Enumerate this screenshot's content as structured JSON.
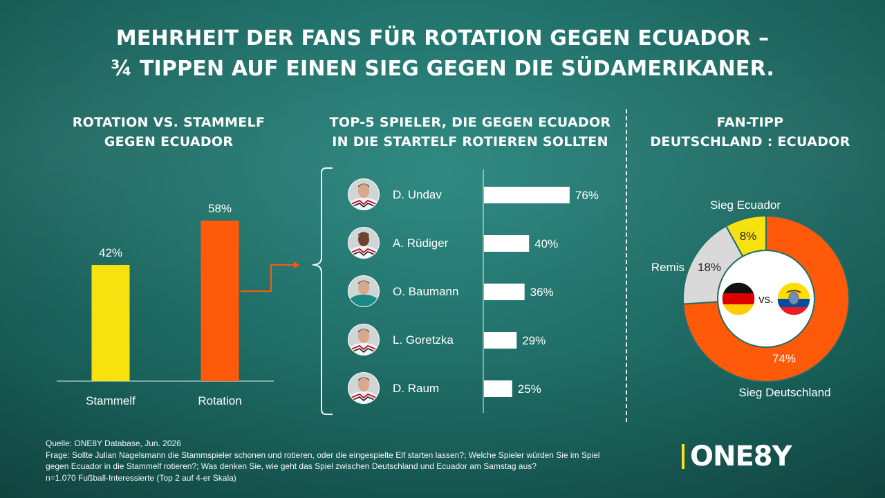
{
  "title": {
    "line1": "MEHRHEIT DER FANS FÜR ROTATION GEGEN ECUADOR –",
    "line2": "¾ TIPPEN AUF EINEN SIEG GEGEN DIE SÜDAMERIKANER."
  },
  "colors": {
    "yellow": "#f7e20f",
    "orange": "#ff5a0a",
    "gray": "#d9d9d9",
    "background": "#1f6e67",
    "white": "#ffffff"
  },
  "chart_data": [
    {
      "type": "bar",
      "title_line1": "ROTATION VS. STAMMELF",
      "title_line2": "GEGEN ECUADOR",
      "categories": [
        "Stammelf",
        "Rotation"
      ],
      "values": [
        42,
        58
      ],
      "value_labels": [
        "42%",
        "58%"
      ],
      "colors": [
        "#f7e20f",
        "#ff5a0a"
      ],
      "ylim": [
        0,
        100
      ]
    },
    {
      "type": "bar",
      "orientation": "horizontal",
      "title_line1": "TOP-5 SPIELER, DIE GEGEN ECUADOR",
      "title_line2": "IN DIE STARTELF ROTIEREN SOLLTEN",
      "categories": [
        "D. Undav",
        "A. Rüdiger",
        "O. Baumann",
        "L. Goretzka",
        "D. Raum"
      ],
      "values": [
        76,
        40,
        36,
        29,
        25
      ],
      "value_labels": [
        "76%",
        "40%",
        "36%",
        "29%",
        "25%"
      ],
      "avatar_icons": [
        "player-avatar-icon",
        "player-avatar-icon",
        "goalkeeper-avatar-icon",
        "player-avatar-icon",
        "player-avatar-icon"
      ],
      "xlim": [
        0,
        100
      ]
    },
    {
      "type": "pie",
      "donut": true,
      "title_line1": "FAN-TIPP",
      "title_line2": "DEUTSCHLAND : ECUADOR",
      "slices": [
        {
          "name": "Sieg Deutschland",
          "value": 74,
          "label": "74%",
          "color": "#ff5a0a"
        },
        {
          "name": "Remis",
          "value": 18,
          "label": "18%",
          "color": "#d9d9d9"
        },
        {
          "name": "Sieg Ecuador",
          "value": 8,
          "label": "8%",
          "color": "#f7e20f"
        }
      ],
      "center_text": "vs.",
      "center_icons": [
        "germany-flag-icon",
        "ecuador-flag-icon"
      ]
    }
  ],
  "footer": {
    "line1": "Quelle: ONE8Y Database, Jun. 2026",
    "line2": "Frage: Sollte Julian Nagelsmann die Stammspieler schonen und rotieren, oder die eingespielte Elf starten lassen?; Welche Spieler würden Sie im Spiel",
    "line3": "gegen Ecuador in die Stammelf rotieren?; Was denken Sie, wie geht das Spiel zwischen Deutschland und Ecuador am Samstag aus?",
    "line4": "n=1.070 Fußball-Interessierte (Top 2 auf 4-er Skala)"
  },
  "logo": {
    "text": "ONE8Y"
  }
}
